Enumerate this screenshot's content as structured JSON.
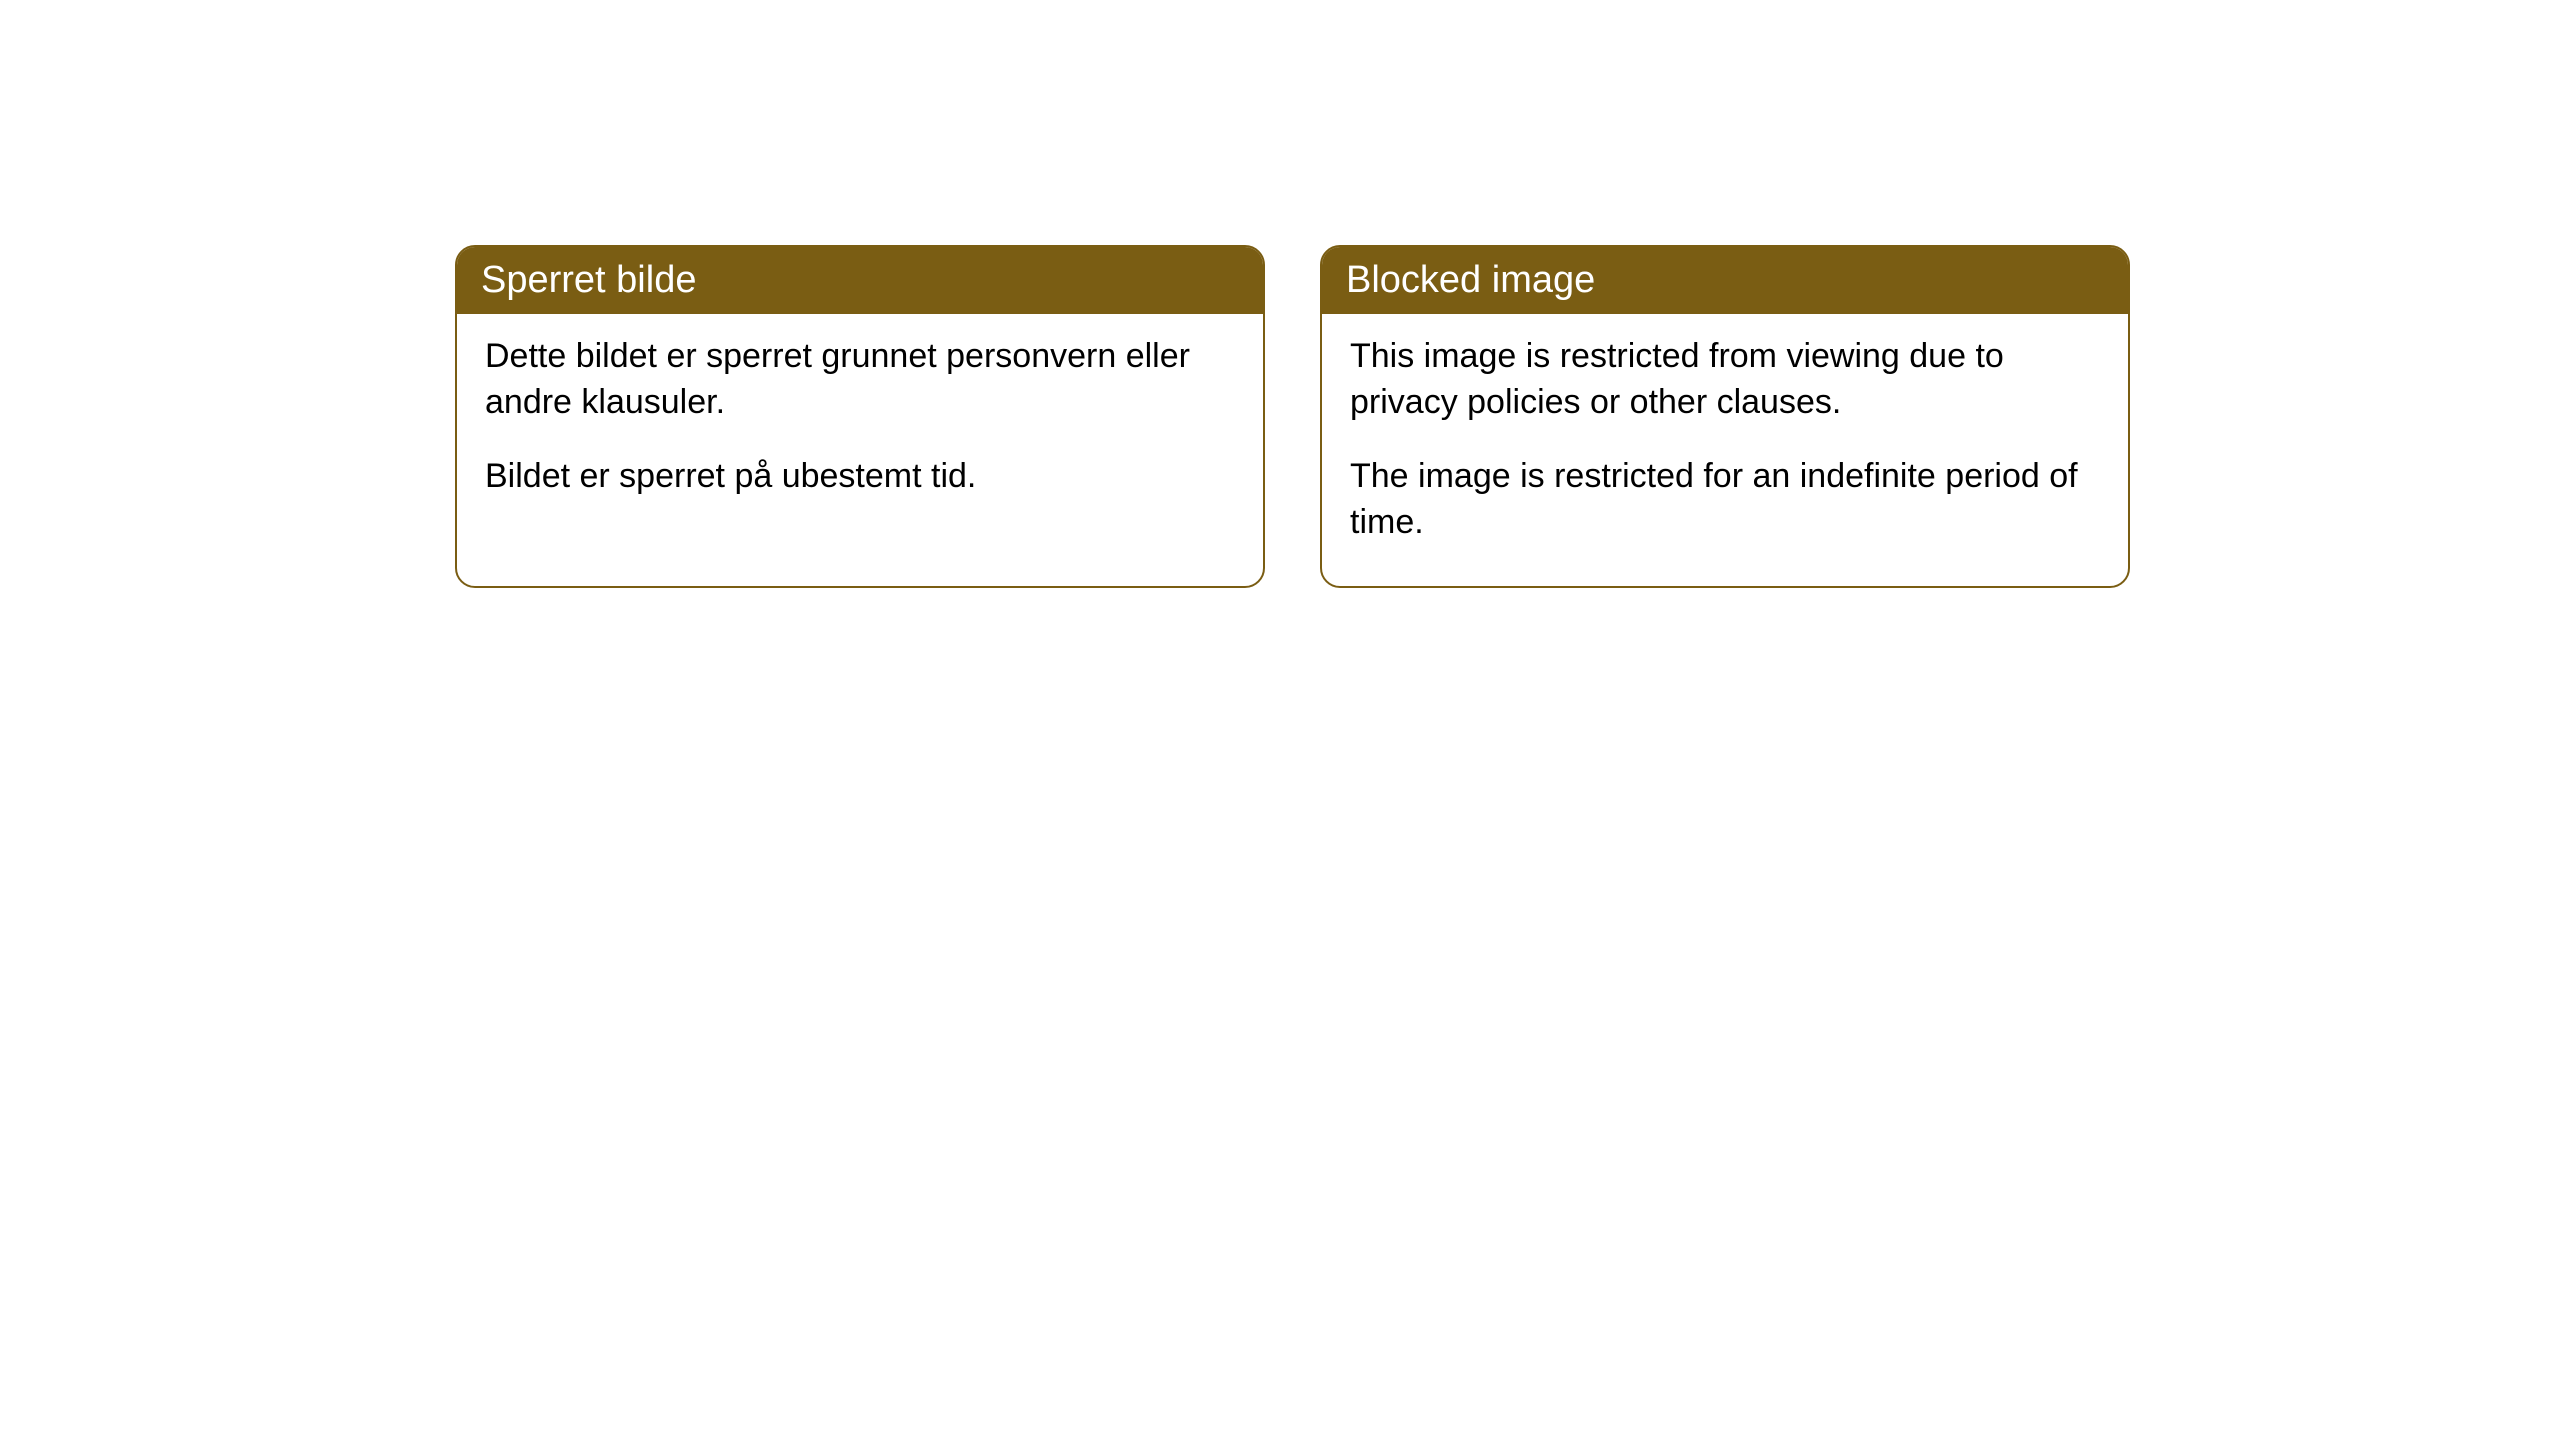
{
  "cards": [
    {
      "title": "Sperret bilde",
      "para1": "Dette bildet er sperret grunnet personvern eller andre klausuler.",
      "para2": "Bildet er sperret på ubestemt tid."
    },
    {
      "title": "Blocked image",
      "para1": "This image is restricted from viewing due to privacy policies or other clauses.",
      "para2": "The image is restricted for an indefinite period of time."
    }
  ],
  "styling": {
    "header_bg": "#7a5d13",
    "header_text": "#ffffff",
    "body_bg": "#ffffff",
    "body_text": "#000000",
    "border_color": "#7a5d13",
    "border_radius": 20,
    "header_fontsize": 38,
    "body_fontsize": 34
  }
}
